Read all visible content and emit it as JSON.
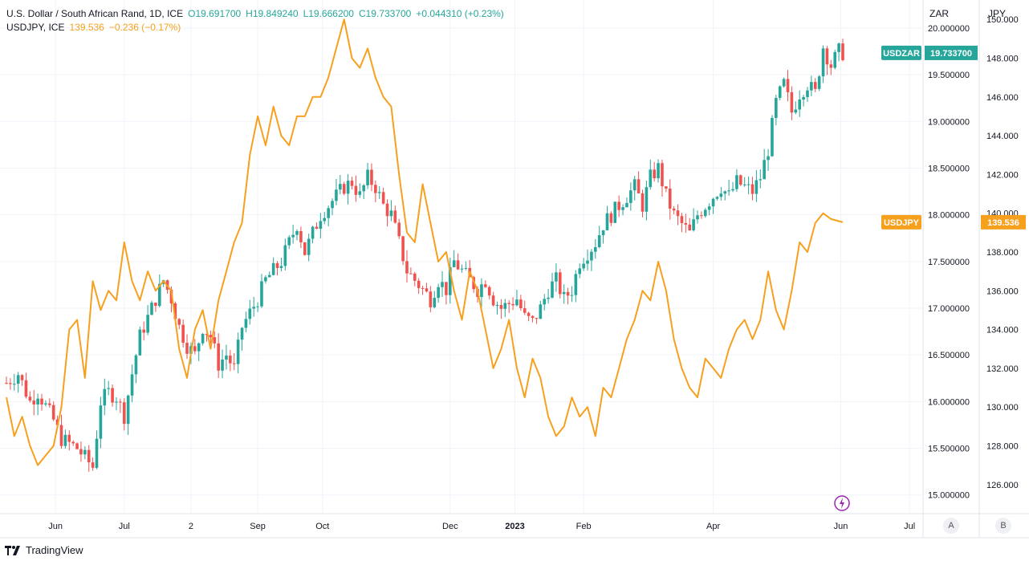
{
  "legend": {
    "symbol1": "U.S. Dollar / South African Rand, 1D, ICE",
    "o": "O19.691700",
    "h": "H19.849240",
    "l": "L19.666200",
    "c": "C19.733700",
    "chg": "+0.044310 (+0.23%)",
    "symbol2": "USDJPY, ICE",
    "v2": "139.536",
    "chg2": "−0.236 (−0.17%)"
  },
  "axes": {
    "zar_header": "ZAR",
    "jpy_header": "JPY",
    "btn_a": "A",
    "btn_b": "B"
  },
  "brand": "TradingView",
  "colors": {
    "up": "#26a69a",
    "down": "#ef5350",
    "jpy_line": "#f7a01e",
    "zar_label_bg": "#26a69a",
    "jpy_label_bg": "#f7a01e"
  },
  "chart_data": {
    "type": "candlestick+line",
    "x_ticks": [
      "Jun",
      "Jul",
      "2",
      "Sep",
      "Oct",
      "Dec",
      "2023",
      "Feb",
      "Apr",
      "Jun",
      "Jul"
    ],
    "zar": {
      "name": "USDZAR",
      "last": "19.733700",
      "ylim": [
        14.8,
        20.3
      ],
      "ticks": [
        "20.000000",
        "19.500000",
        "19.000000",
        "18.500000",
        "18.000000",
        "17.500000",
        "17.000000",
        "16.500000",
        "16.000000",
        "15.500000",
        "15.000000"
      ],
      "tick_values": [
        20.0,
        19.5,
        19.0,
        18.5,
        18.0,
        17.5,
        17.0,
        16.5,
        16.0,
        15.5,
        15.0
      ],
      "close_path": [
        [
          0,
          16.2
        ],
        [
          6,
          16.3
        ],
        [
          12,
          16.0
        ],
        [
          16,
          16.1
        ],
        [
          20,
          15.95
        ],
        [
          24,
          15.8
        ],
        [
          28,
          15.6
        ],
        [
          32,
          15.55
        ],
        [
          36,
          15.5
        ],
        [
          40,
          15.4
        ],
        [
          44,
          15.3
        ],
        [
          48,
          16.0
        ],
        [
          52,
          16.1
        ],
        [
          56,
          16.05
        ],
        [
          60,
          15.85
        ],
        [
          64,
          16.3
        ],
        [
          68,
          16.7
        ],
        [
          72,
          16.9
        ],
        [
          76,
          17.1
        ],
        [
          80,
          17.3
        ],
        [
          84,
          17.1
        ],
        [
          88,
          16.8
        ],
        [
          92,
          16.6
        ],
        [
          96,
          16.5
        ],
        [
          100,
          16.8
        ],
        [
          104,
          16.7
        ],
        [
          108,
          16.4
        ],
        [
          112,
          16.5
        ],
        [
          116,
          16.35
        ],
        [
          120,
          16.8
        ],
        [
          124,
          16.95
        ],
        [
          128,
          17.1
        ],
        [
          132,
          17.3
        ],
        [
          136,
          17.4
        ],
        [
          140,
          17.5
        ],
        [
          144,
          17.7
        ],
        [
          148,
          17.9
        ],
        [
          152,
          17.6
        ],
        [
          156,
          17.8
        ],
        [
          160,
          18.0
        ],
        [
          164,
          18.1
        ],
        [
          168,
          18.2
        ],
        [
          172,
          18.3
        ],
        [
          176,
          18.35
        ],
        [
          180,
          18.2
        ],
        [
          184,
          18.4
        ],
        [
          188,
          18.3
        ],
        [
          192,
          18.1
        ],
        [
          196,
          18.0
        ],
        [
          200,
          17.7
        ],
        [
          204,
          17.4
        ],
        [
          208,
          17.3
        ],
        [
          212,
          17.2
        ],
        [
          216,
          17.1
        ],
        [
          220,
          17.3
        ],
        [
          224,
          17.2
        ],
        [
          228,
          17.5
        ],
        [
          232,
          17.4
        ],
        [
          236,
          17.3
        ],
        [
          240,
          17.2
        ],
        [
          244,
          17.3
        ],
        [
          248,
          17.1
        ],
        [
          252,
          17.0
        ],
        [
          256,
          17.05
        ],
        [
          260,
          17.1
        ],
        [
          264,
          16.9
        ],
        [
          268,
          16.85
        ],
        [
          272,
          17.0
        ],
        [
          276,
          17.2
        ],
        [
          280,
          17.3
        ],
        [
          284,
          17.1
        ],
        [
          288,
          17.2
        ],
        [
          292,
          17.5
        ],
        [
          296,
          17.6
        ],
        [
          300,
          17.7
        ],
        [
          304,
          17.9
        ],
        [
          308,
          18.0
        ],
        [
          312,
          18.1
        ],
        [
          316,
          18.2
        ],
        [
          320,
          18.3
        ],
        [
          324,
          18.1
        ],
        [
          328,
          18.4
        ],
        [
          332,
          18.5
        ],
        [
          336,
          18.2
        ],
        [
          340,
          18.0
        ],
        [
          344,
          17.9
        ],
        [
          348,
          17.8
        ],
        [
          352,
          18.0
        ],
        [
          356,
          18.1
        ],
        [
          360,
          18.2
        ],
        [
          364,
          18.3
        ],
        [
          368,
          18.2
        ],
        [
          372,
          18.35
        ],
        [
          376,
          18.3
        ],
        [
          380,
          18.25
        ],
        [
          384,
          18.4
        ],
        [
          388,
          18.7
        ],
        [
          392,
          19.2
        ],
        [
          396,
          19.4
        ],
        [
          400,
          19.1
        ],
        [
          404,
          19.3
        ],
        [
          408,
          19.4
        ],
        [
          412,
          19.3
        ],
        [
          416,
          19.8
        ],
        [
          420,
          19.6
        ],
        [
          424,
          19.75
        ],
        [
          426,
          19.7337
        ]
      ]
    },
    "jpy": {
      "name": "USDJPY",
      "last": "139.536",
      "ylim": [
        124.5,
        151.0
      ],
      "ticks": [
        "150.000",
        "148.000",
        "146.000",
        "144.000",
        "142.000",
        "140.000",
        "138.000",
        "136.000",
        "134.000",
        "132.000",
        "130.000",
        "128.000",
        "126.000"
      ],
      "tick_values": [
        150,
        148,
        146,
        144,
        142,
        140,
        138,
        136,
        134,
        132,
        130,
        128,
        126
      ],
      "values": [
        [
          0,
          130.5
        ],
        [
          4,
          128.5
        ],
        [
          8,
          129.5
        ],
        [
          12,
          128.0
        ],
        [
          16,
          127.0
        ],
        [
          20,
          127.5
        ],
        [
          24,
          128.0
        ],
        [
          28,
          130.0
        ],
        [
          32,
          134.0
        ],
        [
          36,
          134.5
        ],
        [
          40,
          131.5
        ],
        [
          44,
          136.5
        ],
        [
          48,
          135.0
        ],
        [
          52,
          136.0
        ],
        [
          56,
          135.5
        ],
        [
          60,
          138.5
        ],
        [
          64,
          136.5
        ],
        [
          68,
          135.5
        ],
        [
          72,
          137.0
        ],
        [
          76,
          136.0
        ],
        [
          80,
          136.5
        ],
        [
          84,
          136.0
        ],
        [
          88,
          133.0
        ],
        [
          92,
          131.5
        ],
        [
          96,
          134.0
        ],
        [
          100,
          135.0
        ],
        [
          104,
          133.0
        ],
        [
          108,
          135.5
        ],
        [
          112,
          137.0
        ],
        [
          116,
          138.5
        ],
        [
          120,
          139.5
        ],
        [
          124,
          143.0
        ],
        [
          128,
          145.0
        ],
        [
          132,
          143.5
        ],
        [
          136,
          145.5
        ],
        [
          140,
          144.0
        ],
        [
          144,
          143.5
        ],
        [
          148,
          145.0
        ],
        [
          152,
          145.0
        ],
        [
          156,
          146.0
        ],
        [
          160,
          146.0
        ],
        [
          164,
          147.0
        ],
        [
          168,
          148.5
        ],
        [
          172,
          150.0
        ],
        [
          176,
          148.0
        ],
        [
          180,
          147.5
        ],
        [
          184,
          148.5
        ],
        [
          188,
          147.0
        ],
        [
          192,
          146.0
        ],
        [
          196,
          145.5
        ],
        [
          200,
          142.0
        ],
        [
          204,
          139.0
        ],
        [
          208,
          138.5
        ],
        [
          212,
          141.5
        ],
        [
          216,
          139.5
        ],
        [
          220,
          137.5
        ],
        [
          224,
          138.0
        ],
        [
          228,
          136.0
        ],
        [
          232,
          134.5
        ],
        [
          236,
          137.0
        ],
        [
          240,
          136.0
        ],
        [
          244,
          134.0
        ],
        [
          248,
          132.0
        ],
        [
          252,
          133.0
        ],
        [
          256,
          134.5
        ],
        [
          260,
          132.0
        ],
        [
          264,
          130.5
        ],
        [
          268,
          132.5
        ],
        [
          272,
          131.5
        ],
        [
          276,
          129.5
        ],
        [
          280,
          128.5
        ],
        [
          284,
          129.0
        ],
        [
          288,
          130.5
        ],
        [
          292,
          129.5
        ],
        [
          296,
          130.0
        ],
        [
          300,
          128.5
        ],
        [
          304,
          131.0
        ],
        [
          308,
          130.5
        ],
        [
          312,
          132.0
        ],
        [
          316,
          133.5
        ],
        [
          320,
          134.5
        ],
        [
          324,
          136.0
        ],
        [
          328,
          135.5
        ],
        [
          332,
          137.5
        ],
        [
          336,
          136.0
        ],
        [
          340,
          133.5
        ],
        [
          344,
          132.0
        ],
        [
          348,
          131.0
        ],
        [
          352,
          130.5
        ],
        [
          356,
          132.5
        ],
        [
          360,
          132.0
        ],
        [
          364,
          131.5
        ],
        [
          368,
          133.0
        ],
        [
          372,
          134.0
        ],
        [
          376,
          134.5
        ],
        [
          380,
          133.5
        ],
        [
          384,
          134.5
        ],
        [
          388,
          137.0
        ],
        [
          392,
          135.0
        ],
        [
          396,
          134.0
        ],
        [
          400,
          136.0
        ],
        [
          404,
          138.5
        ],
        [
          408,
          138.0
        ],
        [
          412,
          139.5
        ],
        [
          416,
          140.0
        ],
        [
          420,
          139.7
        ],
        [
          426,
          139.536
        ]
      ]
    }
  }
}
